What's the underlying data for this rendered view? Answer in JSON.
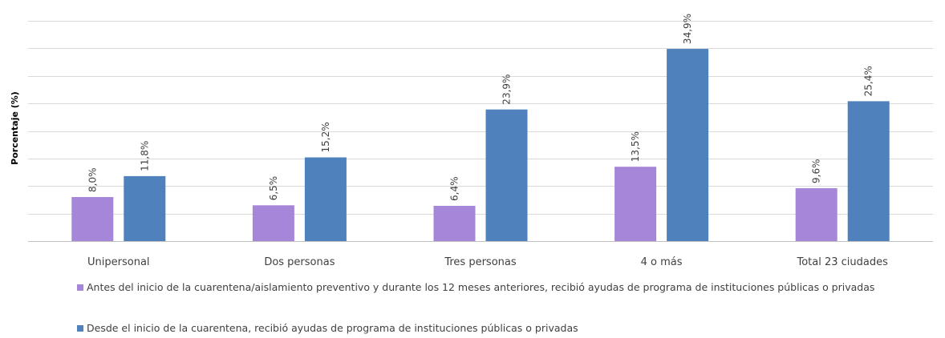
{
  "chart_data": {
    "type": "bar",
    "title": "",
    "xlabel": "",
    "ylabel": "Porcentaje (%)",
    "ylim": [
      0,
      40
    ],
    "grid": true,
    "legend_position": "bottom",
    "categories": [
      "Unipersonal",
      "Dos personas",
      "Tres personas",
      "4 o más",
      "Total 23 ciudades"
    ],
    "series": [
      {
        "name": "Antes del inicio de la cuarentena/aislamiento preventivo y durante los 12 meses anteriores, recibió ayudas de programa de instituciones públicas o privadas",
        "color": "#a586d9",
        "values": [
          8.0,
          6.5,
          6.4,
          13.5,
          9.6
        ],
        "labels": [
          "8,0%",
          "6,5%",
          "6,4%",
          "13,5%",
          "9,6%"
        ]
      },
      {
        "name": "Desde el inicio de la cuarentena, recibió ayudas de programa de instituciones públicas o privadas",
        "color": "#4f81bd",
        "values": [
          11.8,
          15.2,
          23.9,
          34.9,
          25.4
        ],
        "labels": [
          "11,8%",
          "15,2%",
          "23,9%",
          "34,9%",
          "25,4%"
        ]
      }
    ]
  }
}
